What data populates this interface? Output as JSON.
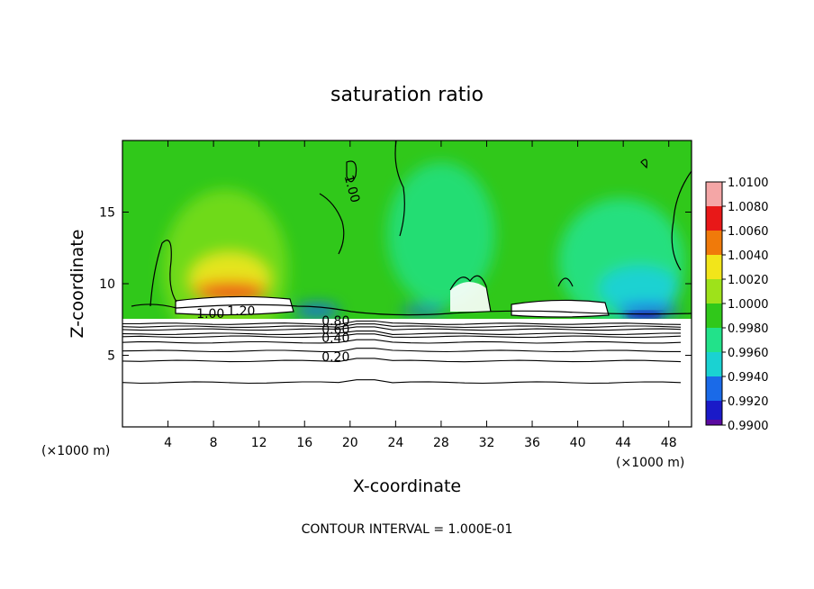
{
  "chart_data": {
    "type": "heatmap",
    "title": "saturation ratio",
    "xlabel": "X-coordinate",
    "ylabel": "Z-coordinate",
    "x_unit": "(×1000 m)",
    "z_unit": "(×1000 m)",
    "xlim": [
      0,
      50
    ],
    "ylim": [
      0,
      20
    ],
    "xticks": [
      4,
      8,
      12,
      16,
      20,
      24,
      28,
      32,
      36,
      40,
      44,
      48
    ],
    "yticks": [
      5,
      10,
      15
    ],
    "colorbar": {
      "levels": [
        1.01,
        1.008,
        1.006,
        1.004,
        1.002,
        1.0,
        0.998,
        0.996,
        0.994,
        0.992,
        0.99
      ],
      "labels": [
        "1.0100",
        "1.0080",
        "1.0060",
        "1.0040",
        "1.0020",
        "1.0000",
        "0.9980",
        "0.9960",
        "0.9940",
        "0.9920",
        "0.9900"
      ],
      "colors": [
        "#f4a6a6",
        "#e81818",
        "#f07a0a",
        "#f2e51a",
        "#9ee21a",
        "#30c81a",
        "#22e28a",
        "#1ad2d2",
        "#1a6ae8",
        "#1a1ac8",
        "#5a0aa0"
      ]
    },
    "contour_interval": "CONTOUR INTERVAL = 1.000E-01",
    "contour_labels": [
      {
        "text": "1.00",
        "x": 19.5,
        "y": 17.5
      },
      {
        "text": "1.00",
        "x": 6.5,
        "y": 7.6
      },
      {
        "text": "1.20",
        "x": 9.2,
        "y": 7.8
      },
      {
        "text": "0.80",
        "x": 17.5,
        "y": 7.1
      },
      {
        "text": "0.60",
        "x": 17.5,
        "y": 6.5
      },
      {
        "text": "0.40",
        "x": 17.5,
        "y": 5.9
      },
      {
        "text": "0.20",
        "x": 17.5,
        "y": 4.6
      }
    ],
    "contour_lines_z": [
      3.1,
      4.6,
      5.3,
      5.9,
      6.3,
      6.5,
      6.8,
      7.0,
      7.2
    ]
  }
}
